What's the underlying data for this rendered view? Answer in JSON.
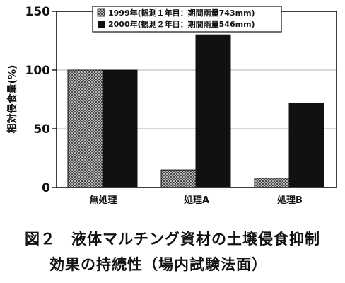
{
  "chart_data": {
    "type": "bar",
    "categories": [
      "無処理",
      "処理A",
      "処理B"
    ],
    "series": [
      {
        "name": "1999年(観測１年目：期間雨量743mm)",
        "values": [
          100,
          15,
          8
        ],
        "pattern": "crosshatch",
        "color": "#9a9a9a"
      },
      {
        "name": "2000年(観測２年目：期間雨量546mm)",
        "values": [
          100,
          130,
          72
        ],
        "pattern": "solid",
        "color": "#111111"
      }
    ],
    "title": "",
    "xlabel": "",
    "ylabel": "相対侵食量(%)",
    "ylim": [
      0,
      150
    ],
    "yticks": [
      0,
      50,
      100,
      150
    ],
    "grid": true,
    "legend_position": "top-center"
  },
  "caption": {
    "line1": "図２　液体マルチング資材の土壌侵食抑制",
    "line2": "効果の持続性（場内試験法面）"
  }
}
